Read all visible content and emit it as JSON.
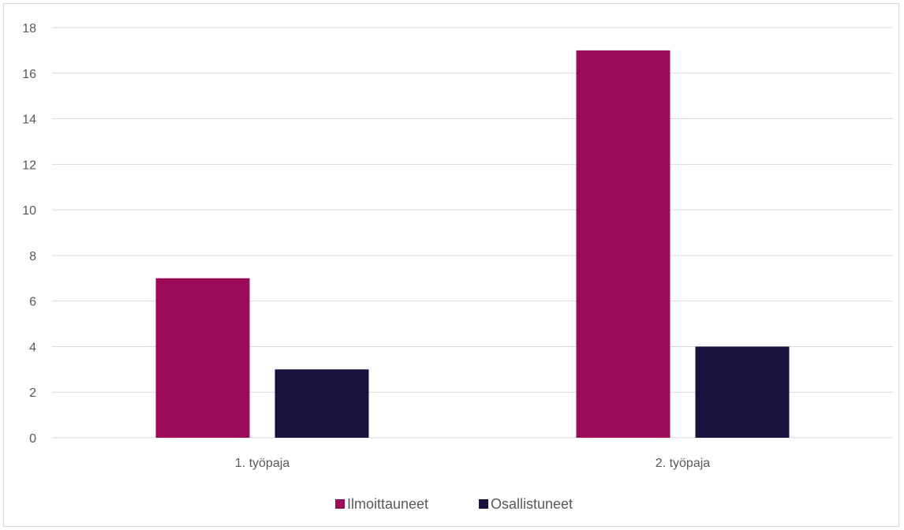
{
  "chart_data": {
    "type": "bar",
    "title": "",
    "xlabel": "",
    "ylabel": "",
    "categories": [
      "1. työpaja",
      "2. työpaja"
    ],
    "series": [
      {
        "name": "Ilmoittauneet",
        "values": [
          7,
          17
        ],
        "color": "#9B0B58"
      },
      {
        "name": "Osallistuneet",
        "values": [
          3,
          4
        ],
        "color": "#17133E"
      }
    ],
    "ylim": [
      0,
      18
    ],
    "yticks": [
      0,
      2,
      4,
      6,
      8,
      10,
      12,
      14,
      16,
      18
    ],
    "grid": true,
    "legend": "bottom"
  }
}
